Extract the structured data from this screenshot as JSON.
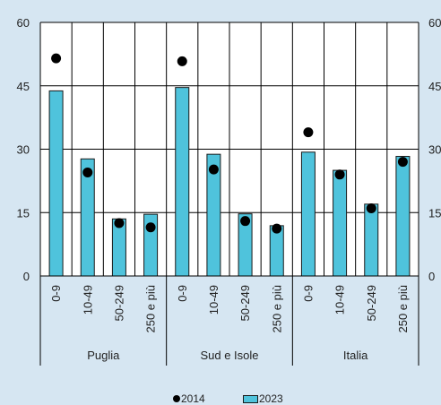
{
  "chart_data": {
    "type": "bar",
    "groups": [
      "Puglia",
      "Sud e Isole",
      "Italia"
    ],
    "categories": [
      "0-9",
      "10-49",
      "50-249",
      "250 e più"
    ],
    "ylim": [
      0,
      60
    ],
    "yticks": [
      0,
      15,
      30,
      45,
      60
    ],
    "series": [
      {
        "name": "2023",
        "mark": "bar",
        "color": "#4fc3dc",
        "values": [
          [
            43.8,
            27.7,
            13.5,
            14.6
          ],
          [
            44.6,
            28.8,
            14.7,
            11.9
          ],
          [
            29.3,
            25.0,
            17.0,
            28.3
          ]
        ]
      },
      {
        "name": "2014",
        "mark": "dot",
        "color": "#000000",
        "values": [
          [
            51.5,
            24.5,
            12.5,
            11.5
          ],
          [
            50.8,
            25.2,
            13.0,
            11.2
          ],
          [
            34.0,
            24.0,
            16.0,
            27.0
          ]
        ]
      }
    ],
    "grid": true,
    "legend_position": "bottom"
  }
}
